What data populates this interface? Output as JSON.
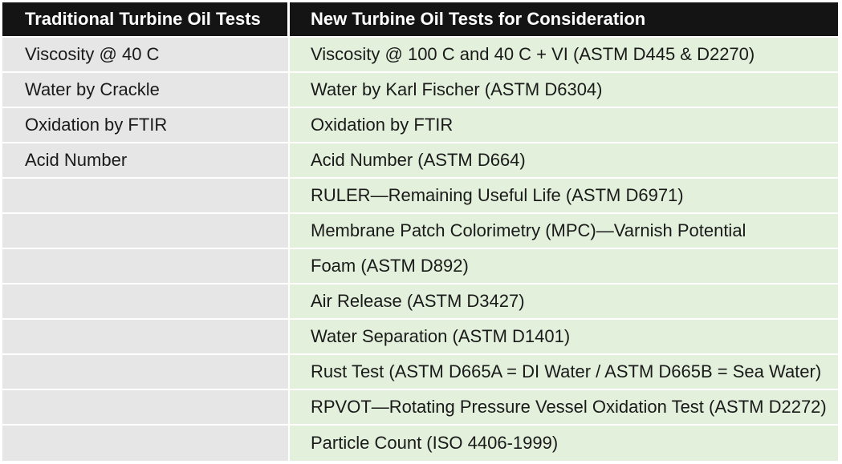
{
  "table": {
    "headers": {
      "traditional": "Traditional Turbine Oil Tests",
      "new": "New Turbine Oil Tests for Consideration"
    },
    "rows": [
      {
        "traditional": "Viscosity @ 40 C",
        "new": "Viscosity @ 100 C and 40 C + VI (ASTM D445 & D2270)"
      },
      {
        "traditional": "Water by Crackle",
        "new": "Water by Karl Fischer (ASTM D6304)"
      },
      {
        "traditional": "Oxidation by FTIR",
        "new": "Oxidation by FTIR"
      },
      {
        "traditional": "Acid Number",
        "new": "Acid Number (ASTM D664)"
      },
      {
        "traditional": "",
        "new": "RULER—Remaining Useful Life (ASTM D6971)"
      },
      {
        "traditional": "",
        "new": "Membrane Patch Colorimetry (MPC)—Varnish Potential"
      },
      {
        "traditional": "",
        "new": "Foam (ASTM D892)"
      },
      {
        "traditional": "",
        "new": "Air Release (ASTM D3427)"
      },
      {
        "traditional": "",
        "new": "Water Separation (ASTM D1401)"
      },
      {
        "traditional": "",
        "new": "Rust Test (ASTM D665A = DI Water / ASTM D665B = Sea Water)"
      },
      {
        "traditional": "",
        "new": "RPVOT—Rotating Pressure Vessel Oxidation Test (ASTM D2272)"
      },
      {
        "traditional": "",
        "new": "Particle Count (ISO 4406-1999)"
      }
    ]
  },
  "colors": {
    "header_bg": "#141414",
    "left_column_bg": "#e6e6e7",
    "right_column_bg": "#e3f0dc"
  }
}
